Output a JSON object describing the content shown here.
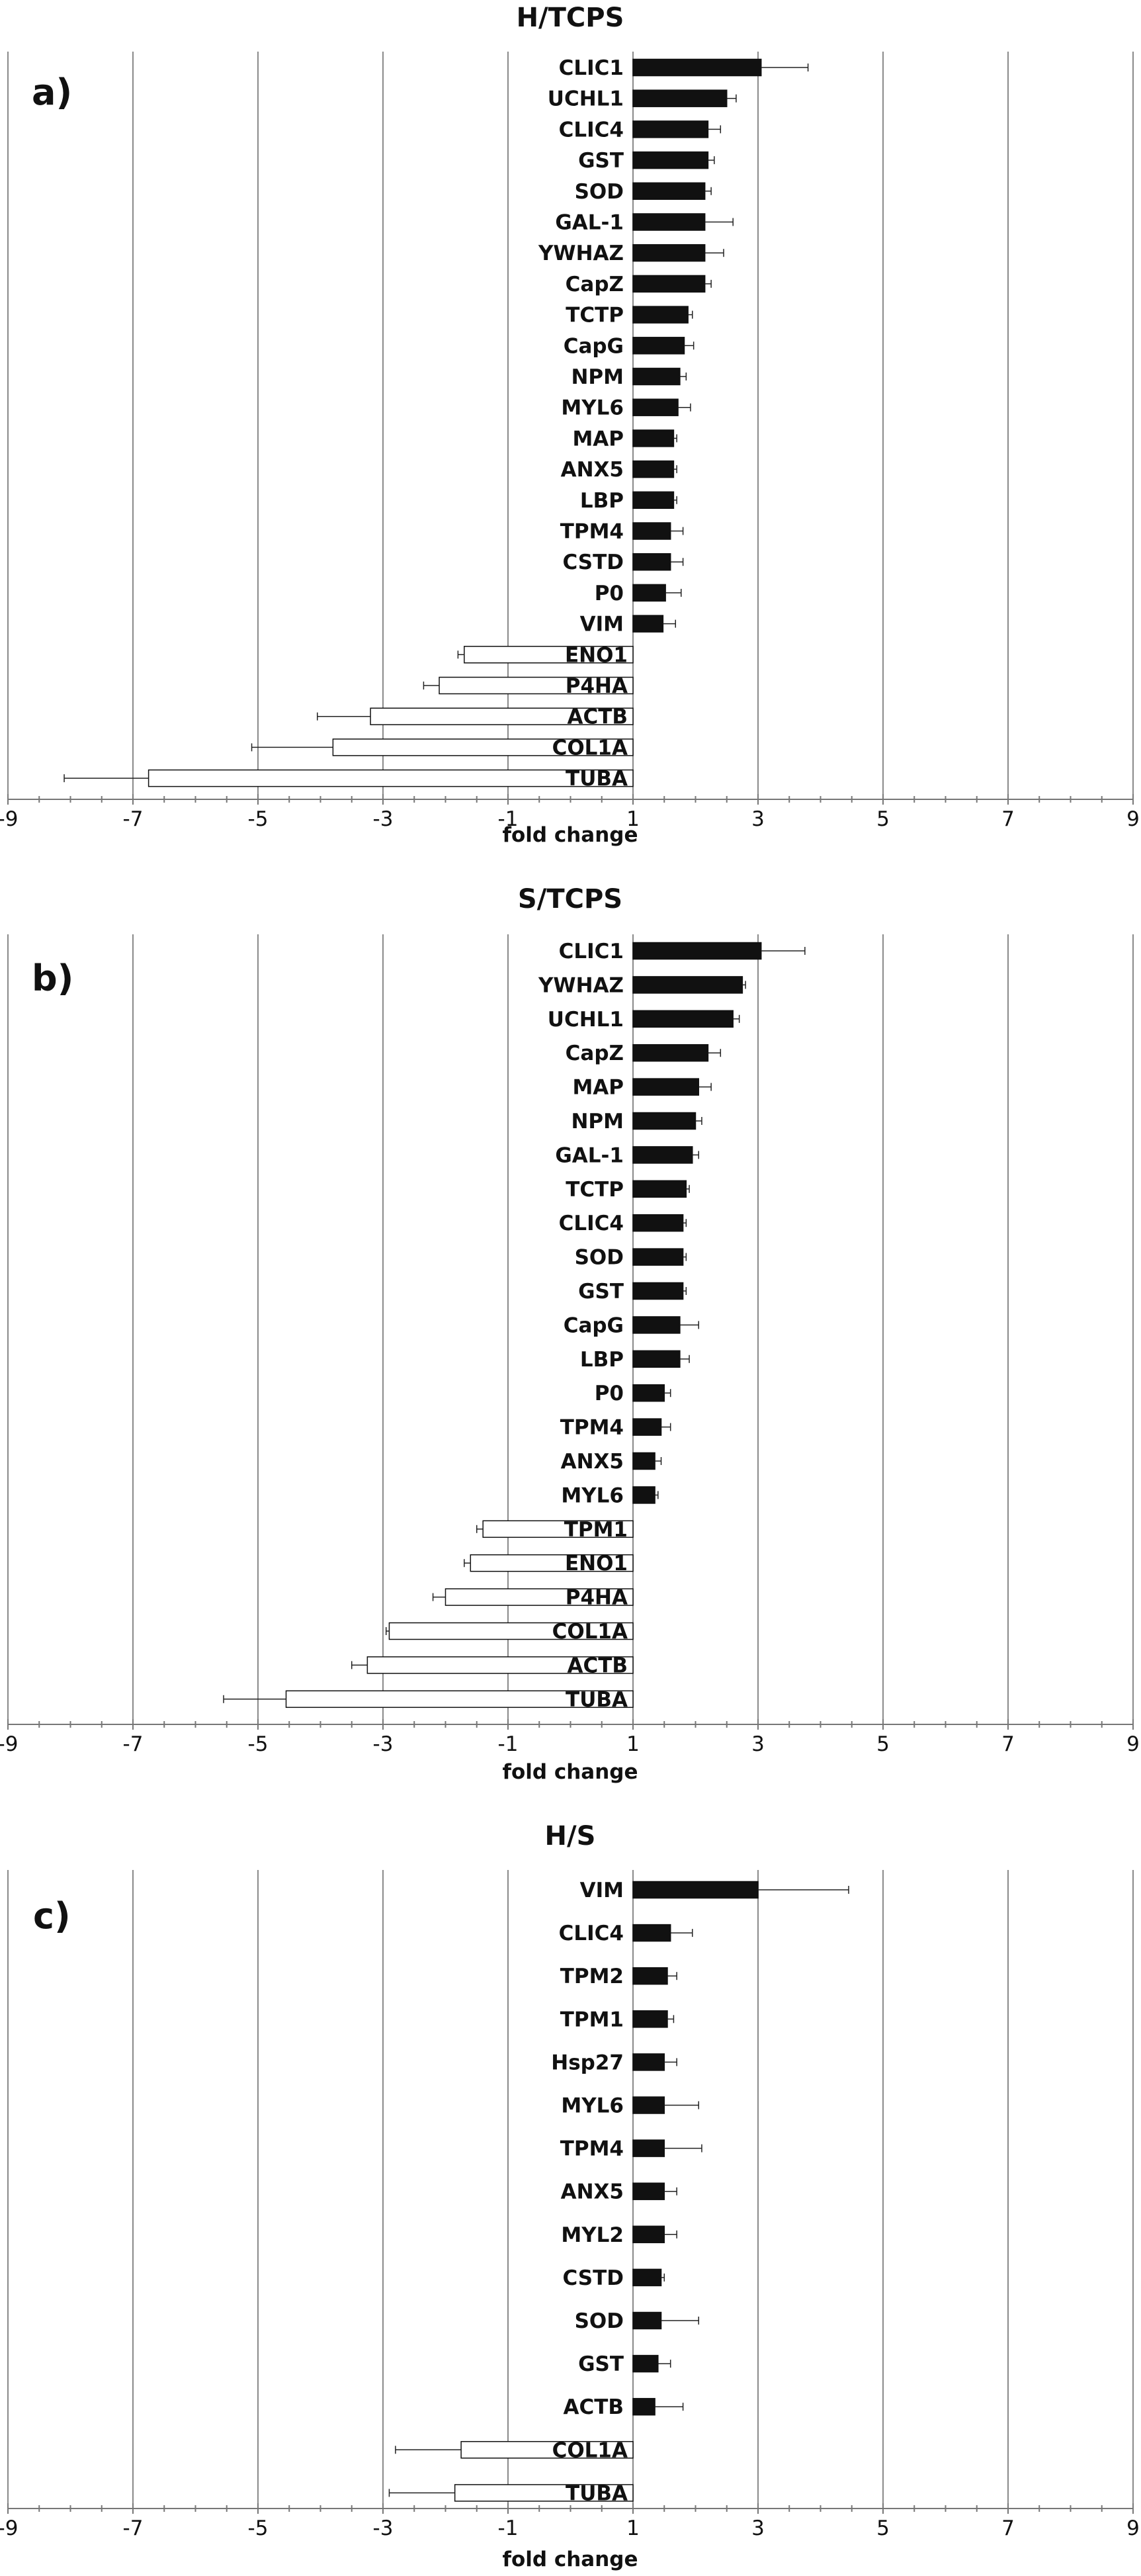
{
  "chart_data": [
    {
      "type": "bar",
      "orientation": "horizontal",
      "panel_label": "a)",
      "title": "H/TCPS",
      "xlabel": "fold change",
      "xlim": [
        -9,
        9
      ],
      "xticks": [
        "-9",
        "-7",
        "-5",
        "-3",
        "-1",
        "1",
        "3",
        "5",
        "7",
        "9"
      ],
      "grid": "vertical",
      "categories": [
        "CLIC1",
        "UCHL1",
        "CLIC4",
        "GST",
        "SOD",
        "GAL-1",
        "YWHAZ",
        "CapZ",
        "TCTP",
        "CapG",
        "NPM",
        "MYL6",
        "MAP",
        "ANX5",
        "LBP",
        "TPM4",
        "CSTD",
        "P0",
        "VIM",
        "ENO1",
        "P4HA",
        "ACTB",
        "COL1A",
        "TUBA"
      ],
      "values": [
        3.05,
        2.5,
        2.2,
        2.2,
        2.15,
        2.15,
        2.15,
        2.15,
        1.88,
        1.82,
        1.75,
        1.72,
        1.65,
        1.65,
        1.65,
        1.6,
        1.6,
        1.52,
        1.48,
        -1.7,
        -2.1,
        -3.2,
        -3.8,
        -6.75
      ],
      "errors": [
        0.75,
        0.15,
        0.2,
        0.1,
        0.1,
        0.45,
        0.3,
        0.1,
        0.07,
        0.15,
        0.1,
        0.2,
        0.05,
        0.05,
        0.05,
        0.2,
        0.2,
        0.25,
        0.2,
        0.1,
        0.25,
        0.85,
        1.3,
        1.35
      ],
      "colors": {
        "positive": "#111111",
        "negative": "#ffffff",
        "outline": "#111111",
        "grid": "#8a8a8a"
      }
    },
    {
      "type": "bar",
      "orientation": "horizontal",
      "panel_label": "b)",
      "title": "S/TCPS",
      "xlabel": "fold change",
      "xlim": [
        -9,
        9
      ],
      "xticks": [
        "-9",
        "-7",
        "-5",
        "-3",
        "-1",
        "1",
        "3",
        "5",
        "7",
        "9"
      ],
      "grid": "vertical",
      "categories": [
        "CLIC1",
        "YWHAZ",
        "UCHL1",
        "CapZ",
        "MAP",
        "NPM",
        "GAL-1",
        "TCTP",
        "CLIC4",
        "SOD",
        "GST",
        "CapG",
        "LBP",
        "P0",
        "TPM4",
        "ANX5",
        "MYL6",
        "TPM1",
        "ENO1",
        "P4HA",
        "COL1A",
        "ACTB",
        "TUBA"
      ],
      "values": [
        3.05,
        2.75,
        2.6,
        2.2,
        2.05,
        2.0,
        1.95,
        1.85,
        1.8,
        1.8,
        1.8,
        1.75,
        1.75,
        1.5,
        1.45,
        1.35,
        1.35,
        -1.4,
        -1.6,
        -2.0,
        -2.9,
        -3.25,
        -4.55
      ],
      "errors": [
        0.7,
        0.05,
        0.1,
        0.2,
        0.2,
        0.1,
        0.1,
        0.05,
        0.05,
        0.05,
        0.05,
        0.3,
        0.15,
        0.1,
        0.15,
        0.1,
        0.05,
        0.1,
        0.1,
        0.2,
        0.05,
        0.25,
        1.0
      ],
      "colors": {
        "positive": "#111111",
        "negative": "#ffffff",
        "outline": "#111111",
        "grid": "#8a8a8a"
      }
    },
    {
      "type": "bar",
      "orientation": "horizontal",
      "panel_label": "c)",
      "title": "H/S",
      "xlabel": "fold change",
      "xlim": [
        -9,
        9
      ],
      "xticks": [
        "-9",
        "-7",
        "-5",
        "-3",
        "-1",
        "1",
        "3",
        "5",
        "7",
        "9"
      ],
      "grid": "vertical",
      "categories": [
        "VIM",
        "CLIC4",
        "TPM2",
        "TPM1",
        "Hsp27",
        "MYL6",
        "TPM4",
        "ANX5",
        "MYL2",
        "CSTD",
        "SOD",
        "GST",
        "ACTB",
        "COL1A",
        "TUBA"
      ],
      "values": [
        3.0,
        1.6,
        1.55,
        1.55,
        1.5,
        1.5,
        1.5,
        1.5,
        1.5,
        1.45,
        1.45,
        1.4,
        1.35,
        -1.75,
        -1.85
      ],
      "errors": [
        1.45,
        0.35,
        0.15,
        0.1,
        0.2,
        0.55,
        0.6,
        0.2,
        0.2,
        0.05,
        0.6,
        0.2,
        0.45,
        1.05,
        1.05
      ],
      "colors": {
        "positive": "#111111",
        "negative": "#ffffff",
        "outline": "#111111",
        "grid": "#8a8a8a"
      }
    }
  ]
}
